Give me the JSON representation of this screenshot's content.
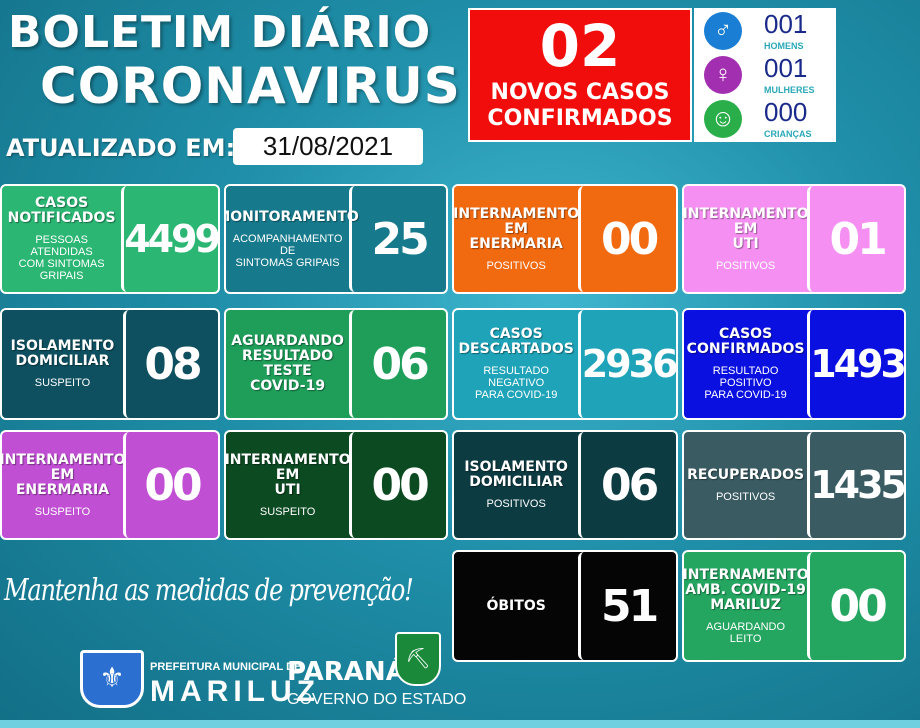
{
  "header": {
    "title_line1": "BOLETIM DIÁRIO",
    "title_line2": "CORONAVIRUS",
    "updated_label": "ATUALIZADO EM:",
    "date": "31/08/2021"
  },
  "new_cases": {
    "value": "02",
    "label": "NOVOS CASOS\nCONFIRMADOS",
    "color": "#f20d0d"
  },
  "demographics": [
    {
      "icon": "man-icon",
      "value": "001",
      "label": "HOMENS",
      "color": "#1a7fd4"
    },
    {
      "icon": "woman-icon",
      "value": "001",
      "label": "MULHERES",
      "color": "#a22fb0"
    },
    {
      "icon": "child-icon",
      "value": "000",
      "label": "CRIANÇAS",
      "color": "#2aae4a"
    }
  ],
  "cards": [
    {
      "id": "casos-notificados",
      "title": "CASOS\nNOTIFICADOS",
      "sub": "PESSOAS ATENDIDAS\nCOM SINTOMAS GRIPAIS",
      "value": "4499",
      "color": "#2bb673"
    },
    {
      "id": "monitoramento",
      "title": "MONITORAMENTO",
      "sub": "ACOMPANHAMENTO DE\nSINTOMAS GRIPAIS",
      "value": "25",
      "color": "#167a8c"
    },
    {
      "id": "internamento-enfermaria-positivos",
      "title": "INTERNAMENTO\nEM\nENERMARIA",
      "sub": "POSITIVOS",
      "value": "00",
      "color": "#f26a10"
    },
    {
      "id": "internamento-uti-positivos",
      "title": "INTERNAMENTO\nEM\nUTI",
      "sub": "POSITIVOS",
      "value": "01",
      "color": "#f590f2"
    },
    {
      "id": "isolamento-suspeito",
      "title": "ISOLAMENTO\nDOMICILIAR",
      "sub": "SUSPEITO",
      "value": "08",
      "color": "#0e5060"
    },
    {
      "id": "aguardando-resultado",
      "title": "AGUARDANDO\nRESULTADO\nTESTE\nCOVID-19",
      "sub": "",
      "value": "06",
      "color": "#1f9e5a"
    },
    {
      "id": "casos-descartados",
      "title": "CASOS\nDESCARTADOS",
      "sub": "RESULTADO NEGATIVO\nPARA COVID-19",
      "value": "2936",
      "color": "#1fa3b8"
    },
    {
      "id": "casos-confirmados",
      "title": "CASOS\nCONFIRMADOS",
      "sub": "RESULTADO  POSITIVO\nPARA COVID-19",
      "value": "1493",
      "color": "#0a10e0"
    },
    {
      "id": "internamento-enfermaria-suspeito",
      "title": "INTERNAMENTO\nEM\nENERMARIA",
      "sub": "SUSPEITO",
      "value": "00",
      "color": "#c04fd4"
    },
    {
      "id": "internamento-uti-suspeito",
      "title": "INTERNAMENTO\nEM\nUTI",
      "sub": "SUSPEITO",
      "value": "00",
      "color": "#0c4a22"
    },
    {
      "id": "isolamento-positivos",
      "title": "ISOLAMENTO\nDOMICILIAR",
      "sub": "POSITIVOS",
      "value": "06",
      "color": "#0d3b42"
    },
    {
      "id": "recuperados",
      "title": "RECUPERADOS",
      "sub": "POSITIVOS",
      "value": "1435",
      "color": "#3a5b62"
    },
    {
      "id": "obitos",
      "title": "ÓBITOS",
      "sub": "",
      "value": "51",
      "color": "#050505"
    },
    {
      "id": "internamento-amb",
      "title": "INTERNAMENTO\nAMB. COVID-19\nMARILUZ",
      "sub": "AGUARDANDO\nLEITO",
      "value": "00",
      "color": "#24a560"
    }
  ],
  "footer": {
    "slogan": "Mantenha as medidas de prevenção!",
    "pref_line1": "PREFEITURA MUNICIPAL DE",
    "pref_line2": "MARILUZ",
    "state_line1": "PARANÁ",
    "state_line2": "GOVERNO DO ESTADO"
  }
}
